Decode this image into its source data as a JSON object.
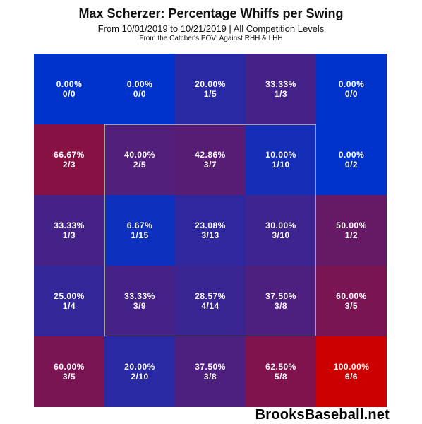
{
  "header": {
    "title": "Max Scherzer: Percentage Whiffs per Swing",
    "subtitle": "From 10/01/2019 to 10/21/2019 | All Competition Levels",
    "pov": "From the Catcher's POV:  Against RHH & LHH"
  },
  "watermark": "BrooksBaseball.net",
  "chart_data": {
    "type": "heatmap",
    "title": "Max Scherzer: Percentage Whiffs per Swing",
    "rows": 5,
    "cols": 5,
    "strike_zone": "inner 3x3 cells",
    "color_scale": {
      "low": "#0033cc",
      "high": "#cc0000"
    },
    "cells": [
      [
        {
          "pct": "0.00%",
          "frac": "0/0",
          "value": 0.0
        },
        {
          "pct": "0.00%",
          "frac": "0/0",
          "value": 0.0
        },
        {
          "pct": "20.00%",
          "frac": "1/5",
          "value": 20.0
        },
        {
          "pct": "33.33%",
          "frac": "1/3",
          "value": 33.33
        },
        {
          "pct": "0.00%",
          "frac": "0/0",
          "value": 0.0
        }
      ],
      [
        {
          "pct": "66.67%",
          "frac": "2/3",
          "value": 66.67
        },
        {
          "pct": "40.00%",
          "frac": "2/5",
          "value": 40.0
        },
        {
          "pct": "42.86%",
          "frac": "3/7",
          "value": 42.86
        },
        {
          "pct": "10.00%",
          "frac": "1/10",
          "value": 10.0
        },
        {
          "pct": "0.00%",
          "frac": "0/2",
          "value": 0.0
        }
      ],
      [
        {
          "pct": "33.33%",
          "frac": "1/3",
          "value": 33.33
        },
        {
          "pct": "6.67%",
          "frac": "1/15",
          "value": 6.67
        },
        {
          "pct": "23.08%",
          "frac": "3/13",
          "value": 23.08
        },
        {
          "pct": "30.00%",
          "frac": "3/10",
          "value": 30.0
        },
        {
          "pct": "50.00%",
          "frac": "1/2",
          "value": 50.0
        }
      ],
      [
        {
          "pct": "25.00%",
          "frac": "1/4",
          "value": 25.0
        },
        {
          "pct": "33.33%",
          "frac": "3/9",
          "value": 33.33
        },
        {
          "pct": "28.57%",
          "frac": "4/14",
          "value": 28.57
        },
        {
          "pct": "37.50%",
          "frac": "3/8",
          "value": 37.5
        },
        {
          "pct": "60.00%",
          "frac": "3/5",
          "value": 60.0
        }
      ],
      [
        {
          "pct": "60.00%",
          "frac": "3/5",
          "value": 60.0
        },
        {
          "pct": "20.00%",
          "frac": "2/10",
          "value": 20.0
        },
        {
          "pct": "37.50%",
          "frac": "3/8",
          "value": 37.5
        },
        {
          "pct": "62.50%",
          "frac": "5/8",
          "value": 62.5
        },
        {
          "pct": "100.00%",
          "frac": "6/6",
          "value": 100.0
        }
      ]
    ]
  }
}
